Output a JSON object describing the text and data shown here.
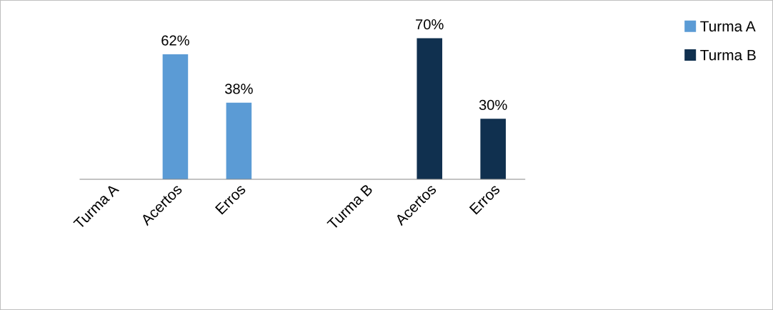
{
  "chart_data": {
    "type": "bar",
    "categories": [
      "Turma A",
      "Acertos",
      "Erros",
      null,
      "Turma B",
      "Acertos",
      "Erros"
    ],
    "series": [
      {
        "name": "Turma A",
        "color": "#5b9bd5",
        "values": [
          null,
          62,
          38,
          null,
          null,
          null,
          null
        ],
        "value_labels": [
          null,
          "62%",
          "38%",
          null,
          null,
          null,
          null
        ]
      },
      {
        "name": "Turma B",
        "color": "#10304f",
        "values": [
          null,
          null,
          null,
          null,
          null,
          70,
          30
        ],
        "value_labels": [
          null,
          null,
          null,
          null,
          null,
          "70%",
          "30%"
        ]
      }
    ],
    "tick_labels": "x",
    "grid": false,
    "legend": "top right"
  }
}
